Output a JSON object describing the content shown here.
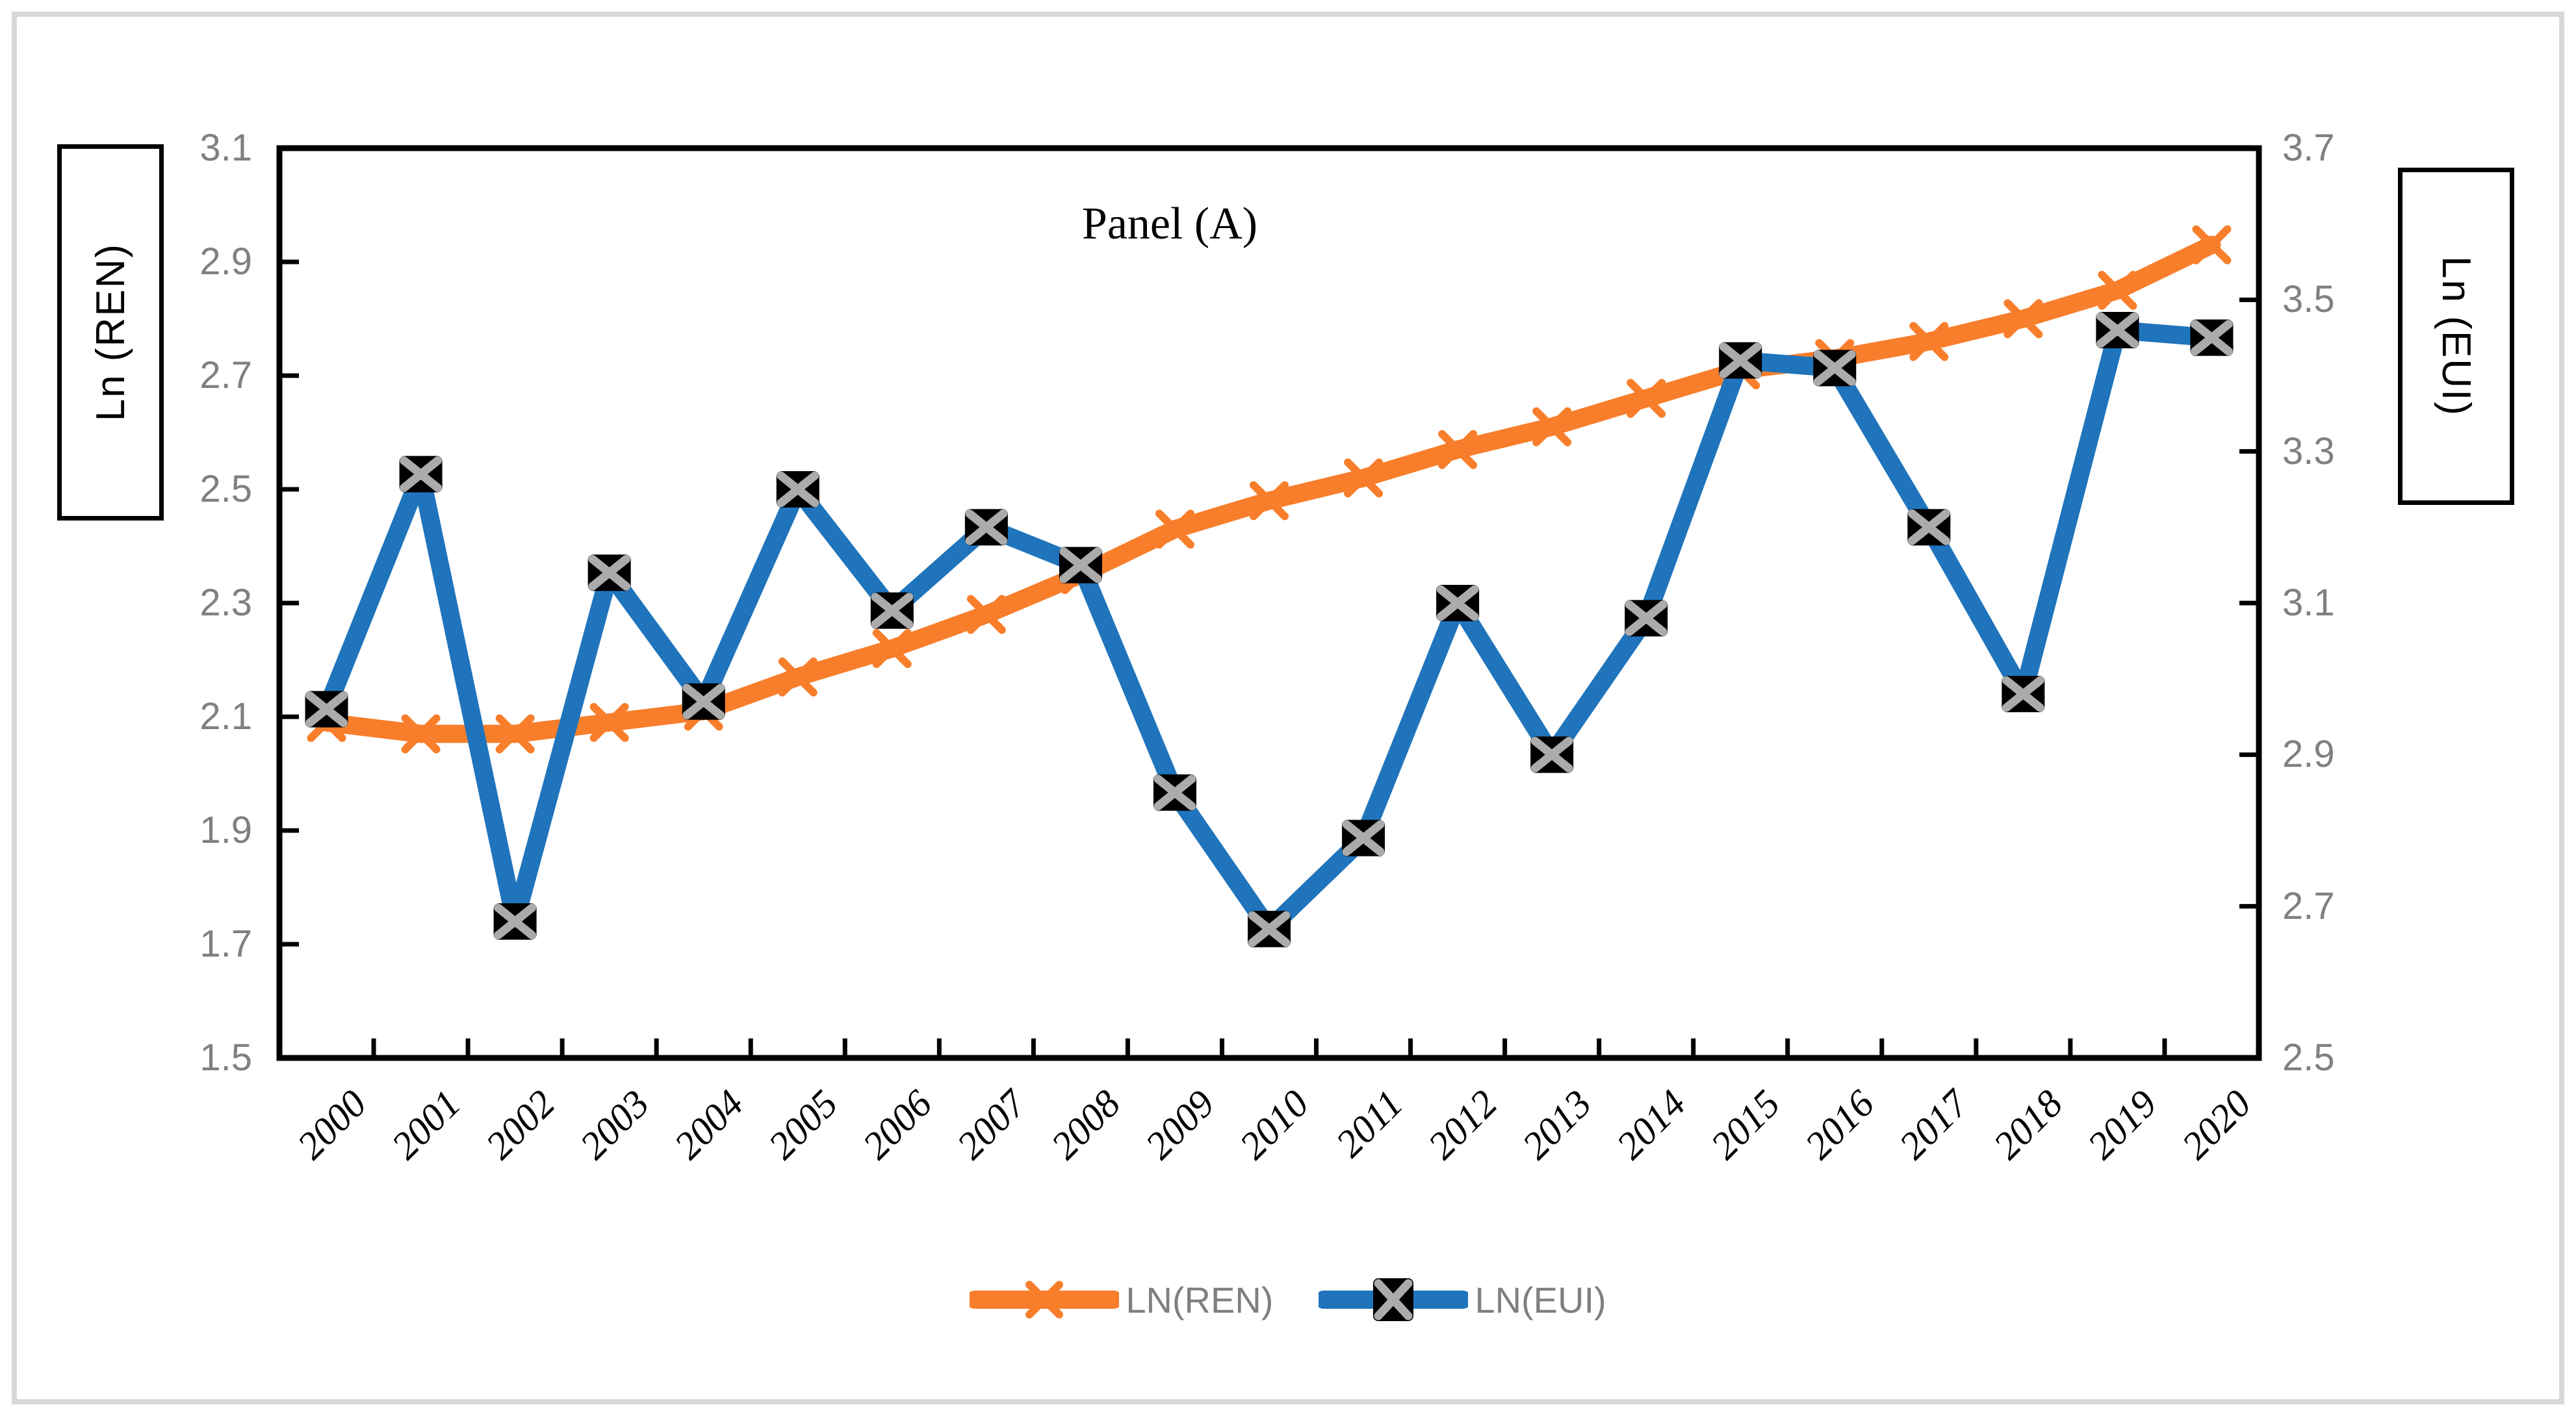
{
  "figure": {
    "title": "Panel (A)"
  },
  "colors": {
    "ren": "#F87E2B",
    "eui": "#1F74BC",
    "marker_box": "#000000",
    "marker_x": "#ABABAB",
    "frame": "#000000",
    "tick_label": "#808080",
    "legend_text": "#7F7F7F",
    "figure_border": "#D8D8D8"
  },
  "left_axis": {
    "label": "Ln (REN)",
    "min": 1.5,
    "max": 3.1,
    "step": 0.2,
    "ticks": [
      "3.1",
      "2.9",
      "2.7",
      "2.5",
      "2.3",
      "2.1",
      "1.9",
      "1.7",
      "1.5"
    ]
  },
  "right_axis": {
    "label": "Ln (EUI)",
    "min": 2.5,
    "max": 3.7,
    "step": 0.2,
    "ticks": [
      "3.7",
      "3.5",
      "3.3",
      "3.1",
      "2.9",
      "2.7",
      "2.5"
    ]
  },
  "x_axis": {
    "years": [
      "2000",
      "2001",
      "2002",
      "2003",
      "2004",
      "2005",
      "2006",
      "2007",
      "2008",
      "2009",
      "2010",
      "2011",
      "2012",
      "2013",
      "2014",
      "2015",
      "2016",
      "2017",
      "2018",
      "2019",
      "2020"
    ]
  },
  "legend": {
    "items": [
      {
        "label": "LN(REN)",
        "series": "ren"
      },
      {
        "label": "LN(EUI)",
        "series": "eui"
      }
    ]
  },
  "chart_data": {
    "type": "line",
    "title": "Panel (A)",
    "x": [
      2000,
      2001,
      2002,
      2003,
      2004,
      2005,
      2006,
      2007,
      2008,
      2009,
      2010,
      2011,
      2012,
      2013,
      2014,
      2015,
      2016,
      2017,
      2018,
      2019,
      2020
    ],
    "series": [
      {
        "name": "LN(REN)",
        "axis": "left",
        "color": "#F87E2B",
        "marker": "x",
        "values": [
          2.09,
          2.07,
          2.07,
          2.09,
          2.11,
          2.17,
          2.22,
          2.28,
          2.35,
          2.43,
          2.48,
          2.52,
          2.57,
          2.61,
          2.66,
          2.71,
          2.73,
          2.76,
          2.8,
          2.85,
          2.93
        ]
      },
      {
        "name": "LN(EUI)",
        "axis": "right",
        "color": "#1F74BC",
        "marker": "boxed-x",
        "values": [
          2.96,
          3.27,
          2.68,
          3.14,
          2.97,
          3.25,
          3.09,
          3.2,
          3.15,
          2.85,
          2.67,
          2.79,
          3.1,
          2.9,
          3.08,
          3.42,
          3.41,
          3.2,
          2.98,
          3.46,
          3.45
        ]
      }
    ],
    "left_ylabel": "Ln (REN)",
    "right_ylabel": "Ln (EUI)",
    "left_ylim": [
      1.5,
      3.1
    ],
    "right_ylim": [
      2.5,
      3.7
    ],
    "grid": false,
    "legend_position": "bottom"
  }
}
